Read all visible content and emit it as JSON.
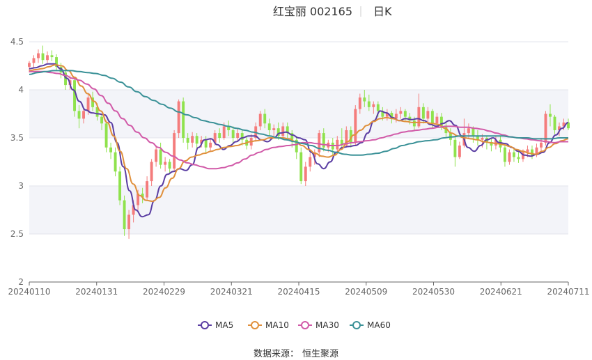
{
  "title": {
    "name": "红宝丽 002165",
    "period": "日K"
  },
  "source": {
    "label": "数据来源：",
    "value": "恒生聚源"
  },
  "colors": {
    "up": "#f47c7c",
    "down": "#8fe24d",
    "MA5": "#5b3ea3",
    "MA10": "#e0903c",
    "MA30": "#d15aa8",
    "MA60": "#3a9197",
    "band": "#f3f4f9",
    "grid": "#e3e5ec"
  },
  "chart_data": {
    "type": "candlestick",
    "ylim": [
      2,
      4.5
    ],
    "yticks": [
      "2",
      "2.5",
      "3",
      "3.5",
      "4",
      "4.5"
    ],
    "xticks": [
      "20240110",
      "20240131",
      "20240229",
      "20240321",
      "20240415",
      "20240509",
      "20240530",
      "20240621",
      "20240711"
    ],
    "candles": [
      [
        4.24,
        4.28,
        4.18,
        4.3
      ],
      [
        4.28,
        4.33,
        4.22,
        4.36
      ],
      [
        4.33,
        4.38,
        4.28,
        4.42
      ],
      [
        4.38,
        4.31,
        4.27,
        4.46
      ],
      [
        4.31,
        4.36,
        4.28,
        4.4
      ],
      [
        4.36,
        4.34,
        4.3,
        4.41
      ],
      [
        4.34,
        4.24,
        4.2,
        4.37
      ],
      [
        4.24,
        4.18,
        4.12,
        4.28
      ],
      [
        4.18,
        4.05,
        4.0,
        4.22
      ],
      [
        4.05,
        4.1,
        4.0,
        4.15
      ],
      [
        4.1,
        3.78,
        3.72,
        4.12
      ],
      [
        3.78,
        3.7,
        3.6,
        3.84
      ],
      [
        3.7,
        3.78,
        3.65,
        3.82
      ],
      [
        3.78,
        3.92,
        3.74,
        3.96
      ],
      [
        3.92,
        3.82,
        3.78,
        3.98
      ],
      [
        3.82,
        3.72,
        3.68,
        3.86
      ],
      [
        3.72,
        3.65,
        3.58,
        3.75
      ],
      [
        3.65,
        3.4,
        3.35,
        3.68
      ],
      [
        3.4,
        3.35,
        3.28,
        3.45
      ],
      [
        3.35,
        3.15,
        3.1,
        3.4
      ],
      [
        3.15,
        2.85,
        2.8,
        3.2
      ],
      [
        2.85,
        2.55,
        2.48,
        2.9
      ],
      [
        2.55,
        2.7,
        2.45,
        2.75
      ],
      [
        2.7,
        2.8,
        2.62,
        2.85
      ],
      [
        2.8,
        2.92,
        2.75,
        2.96
      ],
      [
        2.92,
        2.88,
        2.82,
        2.98
      ],
      [
        2.88,
        3.05,
        2.85,
        3.1
      ],
      [
        3.05,
        3.25,
        3.0,
        3.28
      ],
      [
        3.25,
        3.38,
        3.2,
        3.42
      ],
      [
        3.38,
        3.22,
        3.18,
        3.45
      ],
      [
        3.22,
        3.25,
        3.15,
        3.3
      ],
      [
        3.25,
        3.18,
        3.12,
        3.28
      ],
      [
        3.18,
        3.55,
        3.15,
        3.58
      ],
      [
        3.55,
        3.88,
        3.5,
        3.9
      ],
      [
        3.88,
        3.5,
        3.45,
        3.92
      ],
      [
        3.5,
        3.45,
        3.38,
        3.55
      ],
      [
        3.45,
        3.52,
        3.4,
        3.56
      ],
      [
        3.52,
        3.44,
        3.38,
        3.55
      ],
      [
        3.44,
        3.48,
        3.4,
        3.52
      ],
      [
        3.48,
        3.4,
        3.35,
        3.52
      ],
      [
        3.4,
        3.45,
        3.36,
        3.5
      ],
      [
        3.45,
        3.55,
        3.42,
        3.58
      ],
      [
        3.55,
        3.5,
        3.45,
        3.6
      ],
      [
        3.5,
        3.62,
        3.48,
        3.66
      ],
      [
        3.62,
        3.58,
        3.52,
        3.68
      ],
      [
        3.58,
        3.5,
        3.45,
        3.62
      ],
      [
        3.5,
        3.55,
        3.46,
        3.6
      ],
      [
        3.55,
        3.48,
        3.42,
        3.58
      ],
      [
        3.48,
        3.42,
        3.38,
        3.52
      ],
      [
        3.42,
        3.5,
        3.38,
        3.54
      ],
      [
        3.5,
        3.62,
        3.46,
        3.66
      ],
      [
        3.62,
        3.75,
        3.58,
        3.78
      ],
      [
        3.75,
        3.65,
        3.6,
        3.8
      ],
      [
        3.65,
        3.58,
        3.52,
        3.7
      ],
      [
        3.58,
        3.6,
        3.5,
        3.64
      ],
      [
        3.6,
        3.52,
        3.48,
        3.66
      ],
      [
        3.52,
        3.62,
        3.5,
        3.66
      ],
      [
        3.62,
        3.55,
        3.5,
        3.66
      ],
      [
        3.55,
        3.48,
        3.4,
        3.58
      ],
      [
        3.48,
        3.35,
        3.28,
        3.52
      ],
      [
        3.35,
        3.05,
        3.02,
        3.4
      ],
      [
        3.05,
        3.2,
        3.0,
        3.25
      ],
      [
        3.2,
        3.3,
        3.15,
        3.34
      ],
      [
        3.3,
        3.35,
        3.22,
        3.38
      ],
      [
        3.35,
        3.55,
        3.3,
        3.58
      ],
      [
        3.55,
        3.4,
        3.36,
        3.6
      ],
      [
        3.4,
        3.45,
        3.35,
        3.48
      ],
      [
        3.45,
        3.38,
        3.32,
        3.5
      ],
      [
        3.38,
        3.48,
        3.35,
        3.52
      ],
      [
        3.48,
        3.42,
        3.38,
        3.6
      ],
      [
        3.42,
        3.58,
        3.4,
        3.62
      ],
      [
        3.58,
        3.45,
        3.4,
        3.62
      ],
      [
        3.45,
        3.8,
        3.42,
        3.84
      ],
      [
        3.8,
        3.92,
        3.75,
        3.96
      ],
      [
        3.92,
        3.88,
        3.82,
        4.0
      ],
      [
        3.88,
        3.82,
        3.78,
        3.95
      ],
      [
        3.82,
        3.85,
        3.75,
        3.88
      ],
      [
        3.85,
        3.78,
        3.72,
        3.88
      ],
      [
        3.78,
        3.72,
        3.68,
        3.82
      ],
      [
        3.72,
        3.76,
        3.68,
        3.8
      ],
      [
        3.76,
        3.7,
        3.65,
        3.78
      ],
      [
        3.7,
        3.75,
        3.66,
        3.8
      ],
      [
        3.75,
        3.78,
        3.7,
        3.82
      ],
      [
        3.78,
        3.72,
        3.68,
        3.8
      ],
      [
        3.72,
        3.68,
        3.64,
        3.76
      ],
      [
        3.68,
        3.62,
        3.58,
        3.72
      ],
      [
        3.62,
        3.82,
        3.6,
        3.96
      ],
      [
        3.82,
        3.7,
        3.65,
        3.86
      ],
      [
        3.7,
        3.78,
        3.66,
        3.82
      ],
      [
        3.78,
        3.65,
        3.6,
        3.8
      ],
      [
        3.65,
        3.72,
        3.62,
        3.76
      ],
      [
        3.72,
        3.62,
        3.58,
        3.76
      ],
      [
        3.62,
        3.55,
        3.5,
        3.66
      ],
      [
        3.55,
        3.48,
        3.42,
        3.6
      ],
      [
        3.48,
        3.3,
        3.2,
        3.52
      ],
      [
        3.3,
        3.42,
        3.28,
        3.46
      ],
      [
        3.42,
        3.55,
        3.4,
        3.7
      ],
      [
        3.55,
        3.6,
        3.5,
        3.65
      ],
      [
        3.6,
        3.52,
        3.45,
        3.62
      ],
      [
        3.52,
        3.48,
        3.42,
        3.58
      ],
      [
        3.48,
        3.5,
        3.4,
        3.54
      ],
      [
        3.5,
        3.45,
        3.38,
        3.52
      ],
      [
        3.45,
        3.42,
        3.36,
        3.5
      ],
      [
        3.42,
        3.48,
        3.38,
        3.52
      ],
      [
        3.48,
        3.4,
        3.35,
        3.52
      ],
      [
        3.4,
        3.25,
        3.2,
        3.44
      ],
      [
        3.25,
        3.35,
        3.22,
        3.38
      ],
      [
        3.35,
        3.3,
        3.25,
        3.4
      ],
      [
        3.3,
        3.28,
        3.24,
        3.36
      ],
      [
        3.28,
        3.35,
        3.25,
        3.38
      ],
      [
        3.35,
        3.38,
        3.3,
        3.42
      ],
      [
        3.38,
        3.32,
        3.28,
        3.42
      ],
      [
        3.32,
        3.4,
        3.3,
        3.44
      ],
      [
        3.4,
        3.45,
        3.35,
        3.5
      ],
      [
        3.45,
        3.75,
        3.42,
        3.78
      ],
      [
        3.75,
        3.72,
        3.62,
        3.85
      ],
      [
        3.72,
        3.58,
        3.54,
        3.74
      ],
      [
        3.58,
        3.62,
        3.52,
        3.66
      ],
      [
        3.62,
        3.66,
        3.58,
        3.7
      ],
      [
        3.66,
        3.6,
        3.58,
        3.7
      ]
    ],
    "series": [
      {
        "name": "MA5",
        "values": [
          4.22,
          4.23,
          4.25,
          4.27,
          4.27,
          4.22,
          4.12,
          4.0,
          3.88,
          3.79,
          3.76,
          3.75,
          3.74,
          3.66,
          3.45,
          3.2,
          2.95,
          2.75,
          2.68,
          2.7,
          2.85,
          3.0,
          3.12,
          3.15,
          3.18,
          3.16,
          3.22,
          3.4,
          3.48,
          3.49,
          3.43,
          3.38,
          3.42,
          3.46,
          3.5,
          3.52,
          3.52,
          3.48,
          3.46,
          3.5,
          3.55,
          3.56,
          3.53,
          3.5,
          3.48,
          3.35,
          3.23,
          3.18,
          3.25,
          3.35,
          3.4,
          3.41,
          3.42,
          3.45,
          3.55,
          3.68,
          3.78,
          3.76,
          3.71,
          3.68,
          3.7,
          3.69,
          3.7,
          3.68,
          3.64,
          3.62,
          3.65,
          3.68,
          3.63,
          3.52,
          3.4,
          3.36,
          3.42,
          3.48,
          3.5,
          3.45,
          3.44,
          3.4,
          3.36,
          3.32,
          3.31,
          3.33,
          3.35,
          3.45,
          3.53,
          3.6,
          3.66
        ]
      },
      {
        "name": "MA10",
        "values": [
          4.2,
          4.21,
          4.22,
          4.24,
          4.26,
          4.25,
          4.2,
          4.13,
          4.04,
          3.96,
          3.88,
          3.78,
          3.66,
          3.52,
          3.36,
          3.18,
          3.02,
          2.9,
          2.85,
          2.84,
          2.88,
          2.98,
          3.08,
          3.18,
          3.26,
          3.3,
          3.32,
          3.34,
          3.36,
          3.38,
          3.4,
          3.41,
          3.42,
          3.44,
          3.46,
          3.47,
          3.48,
          3.5,
          3.5,
          3.5,
          3.49,
          3.46,
          3.42,
          3.38,
          3.34,
          3.31,
          3.3,
          3.32,
          3.38,
          3.46,
          3.53,
          3.58,
          3.63,
          3.67,
          3.7,
          3.71,
          3.7,
          3.68,
          3.67,
          3.66,
          3.66,
          3.66,
          3.65,
          3.64,
          3.6,
          3.55,
          3.52,
          3.5,
          3.49,
          3.48,
          3.46,
          3.45,
          3.44,
          3.43,
          3.41,
          3.38,
          3.36,
          3.34,
          3.33,
          3.36,
          3.4,
          3.44,
          3.47,
          3.49
        ]
      },
      {
        "name": "MA30",
        "values": [
          4.19,
          4.19,
          4.19,
          4.18,
          4.17,
          4.15,
          4.12,
          4.1,
          4.06,
          4.01,
          3.94,
          3.86,
          3.78,
          3.7,
          3.63,
          3.56,
          3.5,
          3.45,
          3.4,
          3.35,
          3.31,
          3.27,
          3.24,
          3.22,
          3.2,
          3.18,
          3.18,
          3.19,
          3.21,
          3.24,
          3.28,
          3.32,
          3.35,
          3.38,
          3.4,
          3.41,
          3.42,
          3.43,
          3.45,
          3.45,
          3.44,
          3.43,
          3.42,
          3.42,
          3.44,
          3.45,
          3.46,
          3.47,
          3.48,
          3.5,
          3.52,
          3.54,
          3.56,
          3.57,
          3.58,
          3.59,
          3.6,
          3.61,
          3.62,
          3.62,
          3.61,
          3.61,
          3.6,
          3.59,
          3.57,
          3.55,
          3.53,
          3.51,
          3.5,
          3.49,
          3.48,
          3.47,
          3.46,
          3.45,
          3.46,
          3.46
        ]
      },
      {
        "name": "MA60",
        "values": [
          4.16,
          4.18,
          4.19,
          4.2,
          4.2,
          4.2,
          4.19,
          4.18,
          4.17,
          4.15,
          4.12,
          4.08,
          4.03,
          3.98,
          3.93,
          3.89,
          3.85,
          3.81,
          3.77,
          3.74,
          3.71,
          3.68,
          3.66,
          3.64,
          3.62,
          3.6,
          3.58,
          3.56,
          3.54,
          3.52,
          3.5,
          3.48,
          3.46,
          3.44,
          3.42,
          3.39,
          3.37,
          3.35,
          3.33,
          3.32,
          3.32,
          3.33,
          3.34,
          3.36,
          3.39,
          3.42,
          3.44,
          3.46,
          3.47,
          3.48,
          3.5,
          3.51,
          3.52,
          3.52,
          3.52,
          3.52,
          3.52,
          3.52,
          3.51,
          3.5,
          3.5,
          3.49,
          3.49,
          3.49,
          3.5,
          3.5
        ]
      }
    ]
  }
}
